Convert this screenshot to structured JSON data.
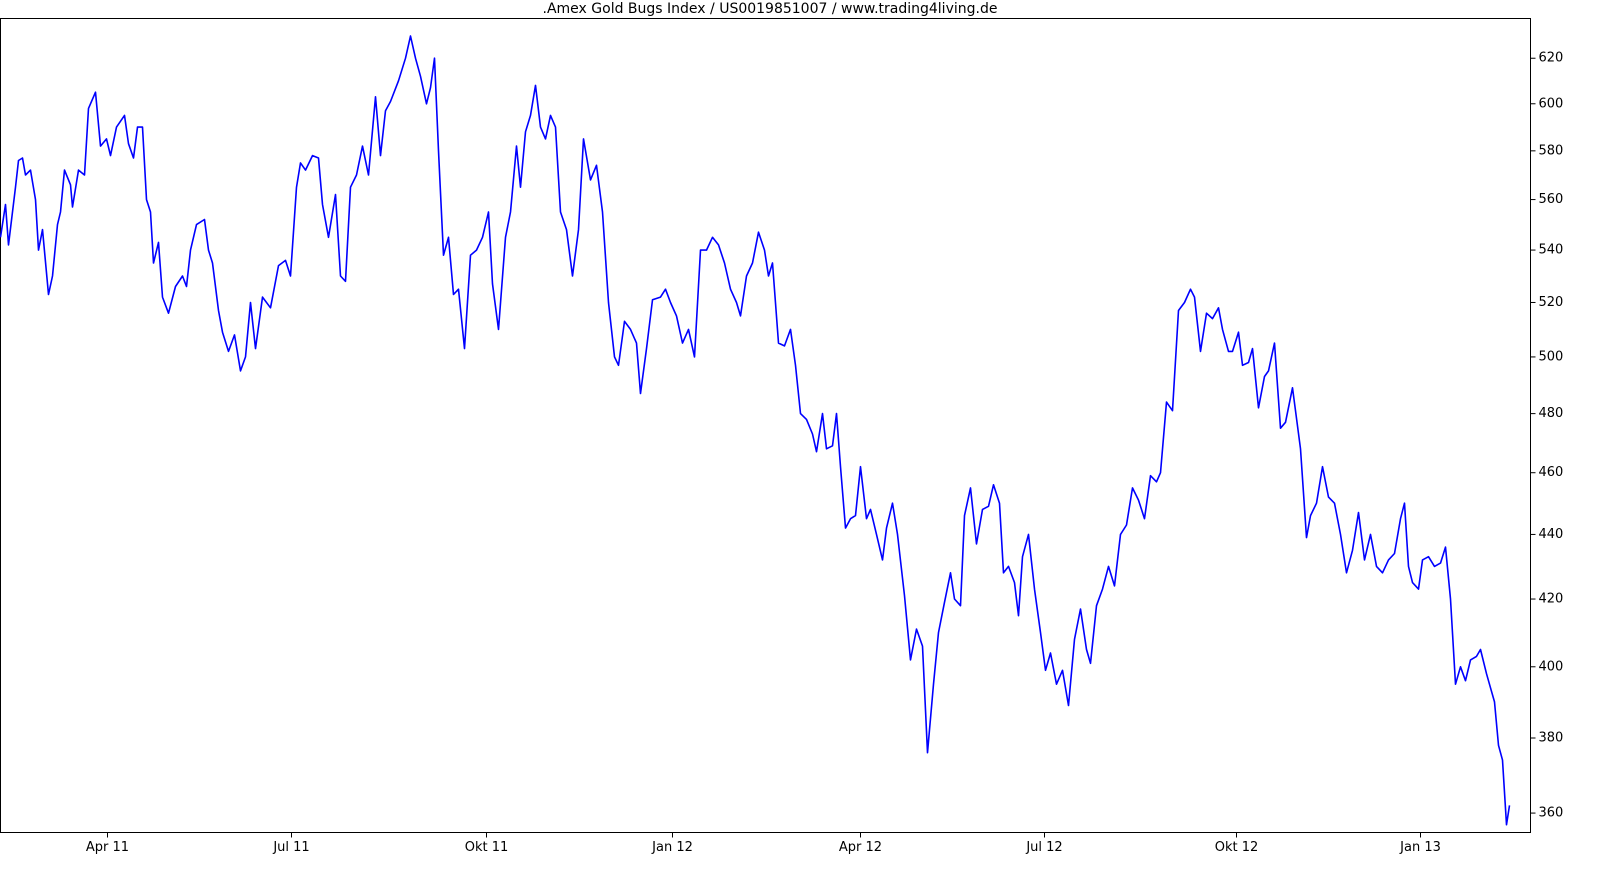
{
  "chart_data": {
    "type": "line",
    "title": ".Amex Gold Bugs Index / US0019851007 / www.trading4living.de",
    "log_scale": true,
    "grid": false,
    "color": "#0000ff",
    "xlim": [
      0,
      1530
    ],
    "ylim": [
      355,
      638
    ],
    "yticks": [
      360,
      380,
      400,
      420,
      440,
      460,
      480,
      500,
      520,
      540,
      560,
      580,
      600,
      620
    ],
    "xticks": [
      {
        "value": 107,
        "label": "Apr 11"
      },
      {
        "value": 291,
        "label": "Jul 11"
      },
      {
        "value": 486,
        "label": "Okt 11"
      },
      {
        "value": 672,
        "label": "Jan 12"
      },
      {
        "value": 860,
        "label": "Apr 12"
      },
      {
        "value": 1044,
        "label": "Jul 12"
      },
      {
        "value": 1236,
        "label": "Okt 12"
      },
      {
        "value": 1420,
        "label": "Jan 13"
      }
    ],
    "x": [
      0,
      5,
      8,
      15,
      18,
      22,
      25,
      30,
      35,
      38,
      42,
      48,
      52,
      57,
      60,
      64,
      70,
      72,
      78,
      84,
      88,
      95,
      100,
      106,
      110,
      116,
      124,
      128,
      133,
      137,
      142,
      146,
      150,
      153,
      158,
      162,
      168,
      175,
      182,
      186,
      190,
      196,
      204,
      208,
      212,
      218,
      222,
      228,
      234,
      240,
      245,
      250,
      255,
      262,
      270,
      278,
      285,
      290,
      296,
      300,
      305,
      312,
      318,
      322,
      328,
      335,
      340,
      345,
      350,
      356,
      362,
      368,
      375,
      380,
      385,
      390,
      398,
      405,
      410,
      415,
      420,
      426,
      430,
      434,
      438,
      443,
      448,
      453,
      458,
      464,
      470,
      476,
      482,
      488,
      492,
      498,
      505,
      510,
      516,
      520,
      525,
      530,
      535,
      540,
      545,
      550,
      555,
      560,
      566,
      572,
      578,
      583,
      590,
      596,
      602,
      608,
      614,
      618,
      624,
      630,
      636,
      640,
      646,
      652,
      660,
      665,
      670,
      676,
      682,
      688,
      694,
      700,
      706,
      712,
      718,
      724,
      730,
      736,
      740,
      746,
      752,
      758,
      764,
      768,
      772,
      778,
      784,
      790,
      795,
      800,
      806,
      812,
      816,
      822,
      826,
      832,
      836,
      840,
      845,
      850,
      855,
      860,
      866,
      870,
      876,
      882,
      886,
      892,
      897,
      904,
      910,
      916,
      922,
      927,
      933,
      938,
      944,
      950,
      954,
      960,
      964,
      970,
      976,
      982,
      988,
      993,
      999,
      1003,
      1008,
      1014,
      1018,
      1022,
      1028,
      1034,
      1040,
      1045,
      1050,
      1056,
      1062,
      1068,
      1074,
      1080,
      1086,
      1090,
      1096,
      1102,
      1108,
      1114,
      1120,
      1126,
      1132,
      1138,
      1144,
      1150,
      1156,
      1160,
      1166,
      1172,
      1178,
      1184,
      1190,
      1194,
      1200,
      1206,
      1212,
      1218,
      1222,
      1228,
      1232,
      1238,
      1242,
      1248,
      1252,
      1258,
      1264,
      1268,
      1274,
      1280,
      1285,
      1292,
      1300,
      1306,
      1310,
      1316,
      1322,
      1328,
      1334,
      1340,
      1346,
      1352,
      1358,
      1364,
      1370,
      1376,
      1382,
      1388,
      1394,
      1400,
      1404,
      1408,
      1412,
      1418,
      1422,
      1428,
      1434,
      1440,
      1445,
      1450,
      1455,
      1460,
      1465,
      1470,
      1476,
      1480,
      1486,
      1490,
      1494,
      1498,
      1502,
      1506,
      1509
    ],
    "values": [
      545,
      558,
      542,
      565,
      576,
      577,
      570,
      572,
      560,
      540,
      548,
      523,
      530,
      550,
      555,
      572,
      566,
      557,
      572,
      570,
      598,
      605,
      582,
      585,
      578,
      590,
      595,
      583,
      577,
      590,
      590,
      560,
      555,
      535,
      543,
      522,
      516,
      526,
      530,
      526,
      540,
      550,
      552,
      540,
      535,
      517,
      509,
      502,
      508,
      495,
      500,
      520,
      503,
      522,
      518,
      534,
      536,
      530,
      565,
      575,
      572,
      578,
      577,
      558,
      545,
      562,
      530,
      528,
      565,
      570,
      582,
      570,
      603,
      578,
      597,
      601,
      610,
      620,
      630,
      620,
      612,
      600,
      607,
      620,
      580,
      538,
      545,
      523,
      525,
      503,
      538,
      540,
      545,
      555,
      527,
      510,
      545,
      555,
      582,
      565,
      588,
      595,
      608,
      590,
      585,
      595,
      590,
      555,
      548,
      530,
      548,
      585,
      568,
      574,
      555,
      520,
      500,
      497,
      513,
      510,
      505,
      487,
      503,
      521,
      522,
      525,
      520,
      515,
      505,
      510,
      500,
      540,
      540,
      545,
      542,
      535,
      525,
      520,
      515,
      530,
      535,
      547,
      540,
      530,
      535,
      505,
      504,
      510,
      497,
      480,
      478,
      473,
      467,
      480,
      468,
      469,
      480,
      462,
      442,
      445,
      446,
      462,
      445,
      448,
      440,
      432,
      442,
      450,
      440,
      421,
      402,
      411,
      406,
      376,
      395,
      410,
      419,
      428,
      420,
      418,
      446,
      455,
      437,
      448,
      449,
      456,
      450,
      428,
      430,
      425,
      415,
      433,
      440,
      423,
      410,
      399,
      404,
      395,
      399,
      389,
      408,
      417,
      405,
      401,
      418,
      423,
      430,
      424,
      440,
      443,
      455,
      451,
      445,
      459,
      457,
      460,
      484,
      481,
      517,
      520,
      525,
      522,
      502,
      516,
      514,
      518,
      510,
      502,
      502,
      509,
      497,
      498,
      503,
      482,
      493,
      495,
      505,
      475,
      477,
      489,
      468,
      439,
      446,
      450,
      462,
      452,
      450,
      440,
      428,
      435,
      447,
      432,
      440,
      430,
      428,
      432,
      434,
      445,
      450,
      430,
      425,
      423,
      432,
      433,
      430,
      431,
      436,
      420,
      395,
      400,
      396,
      402,
      403,
      405,
      398,
      394,
      390,
      378,
      374,
      357,
      362
    ]
  }
}
